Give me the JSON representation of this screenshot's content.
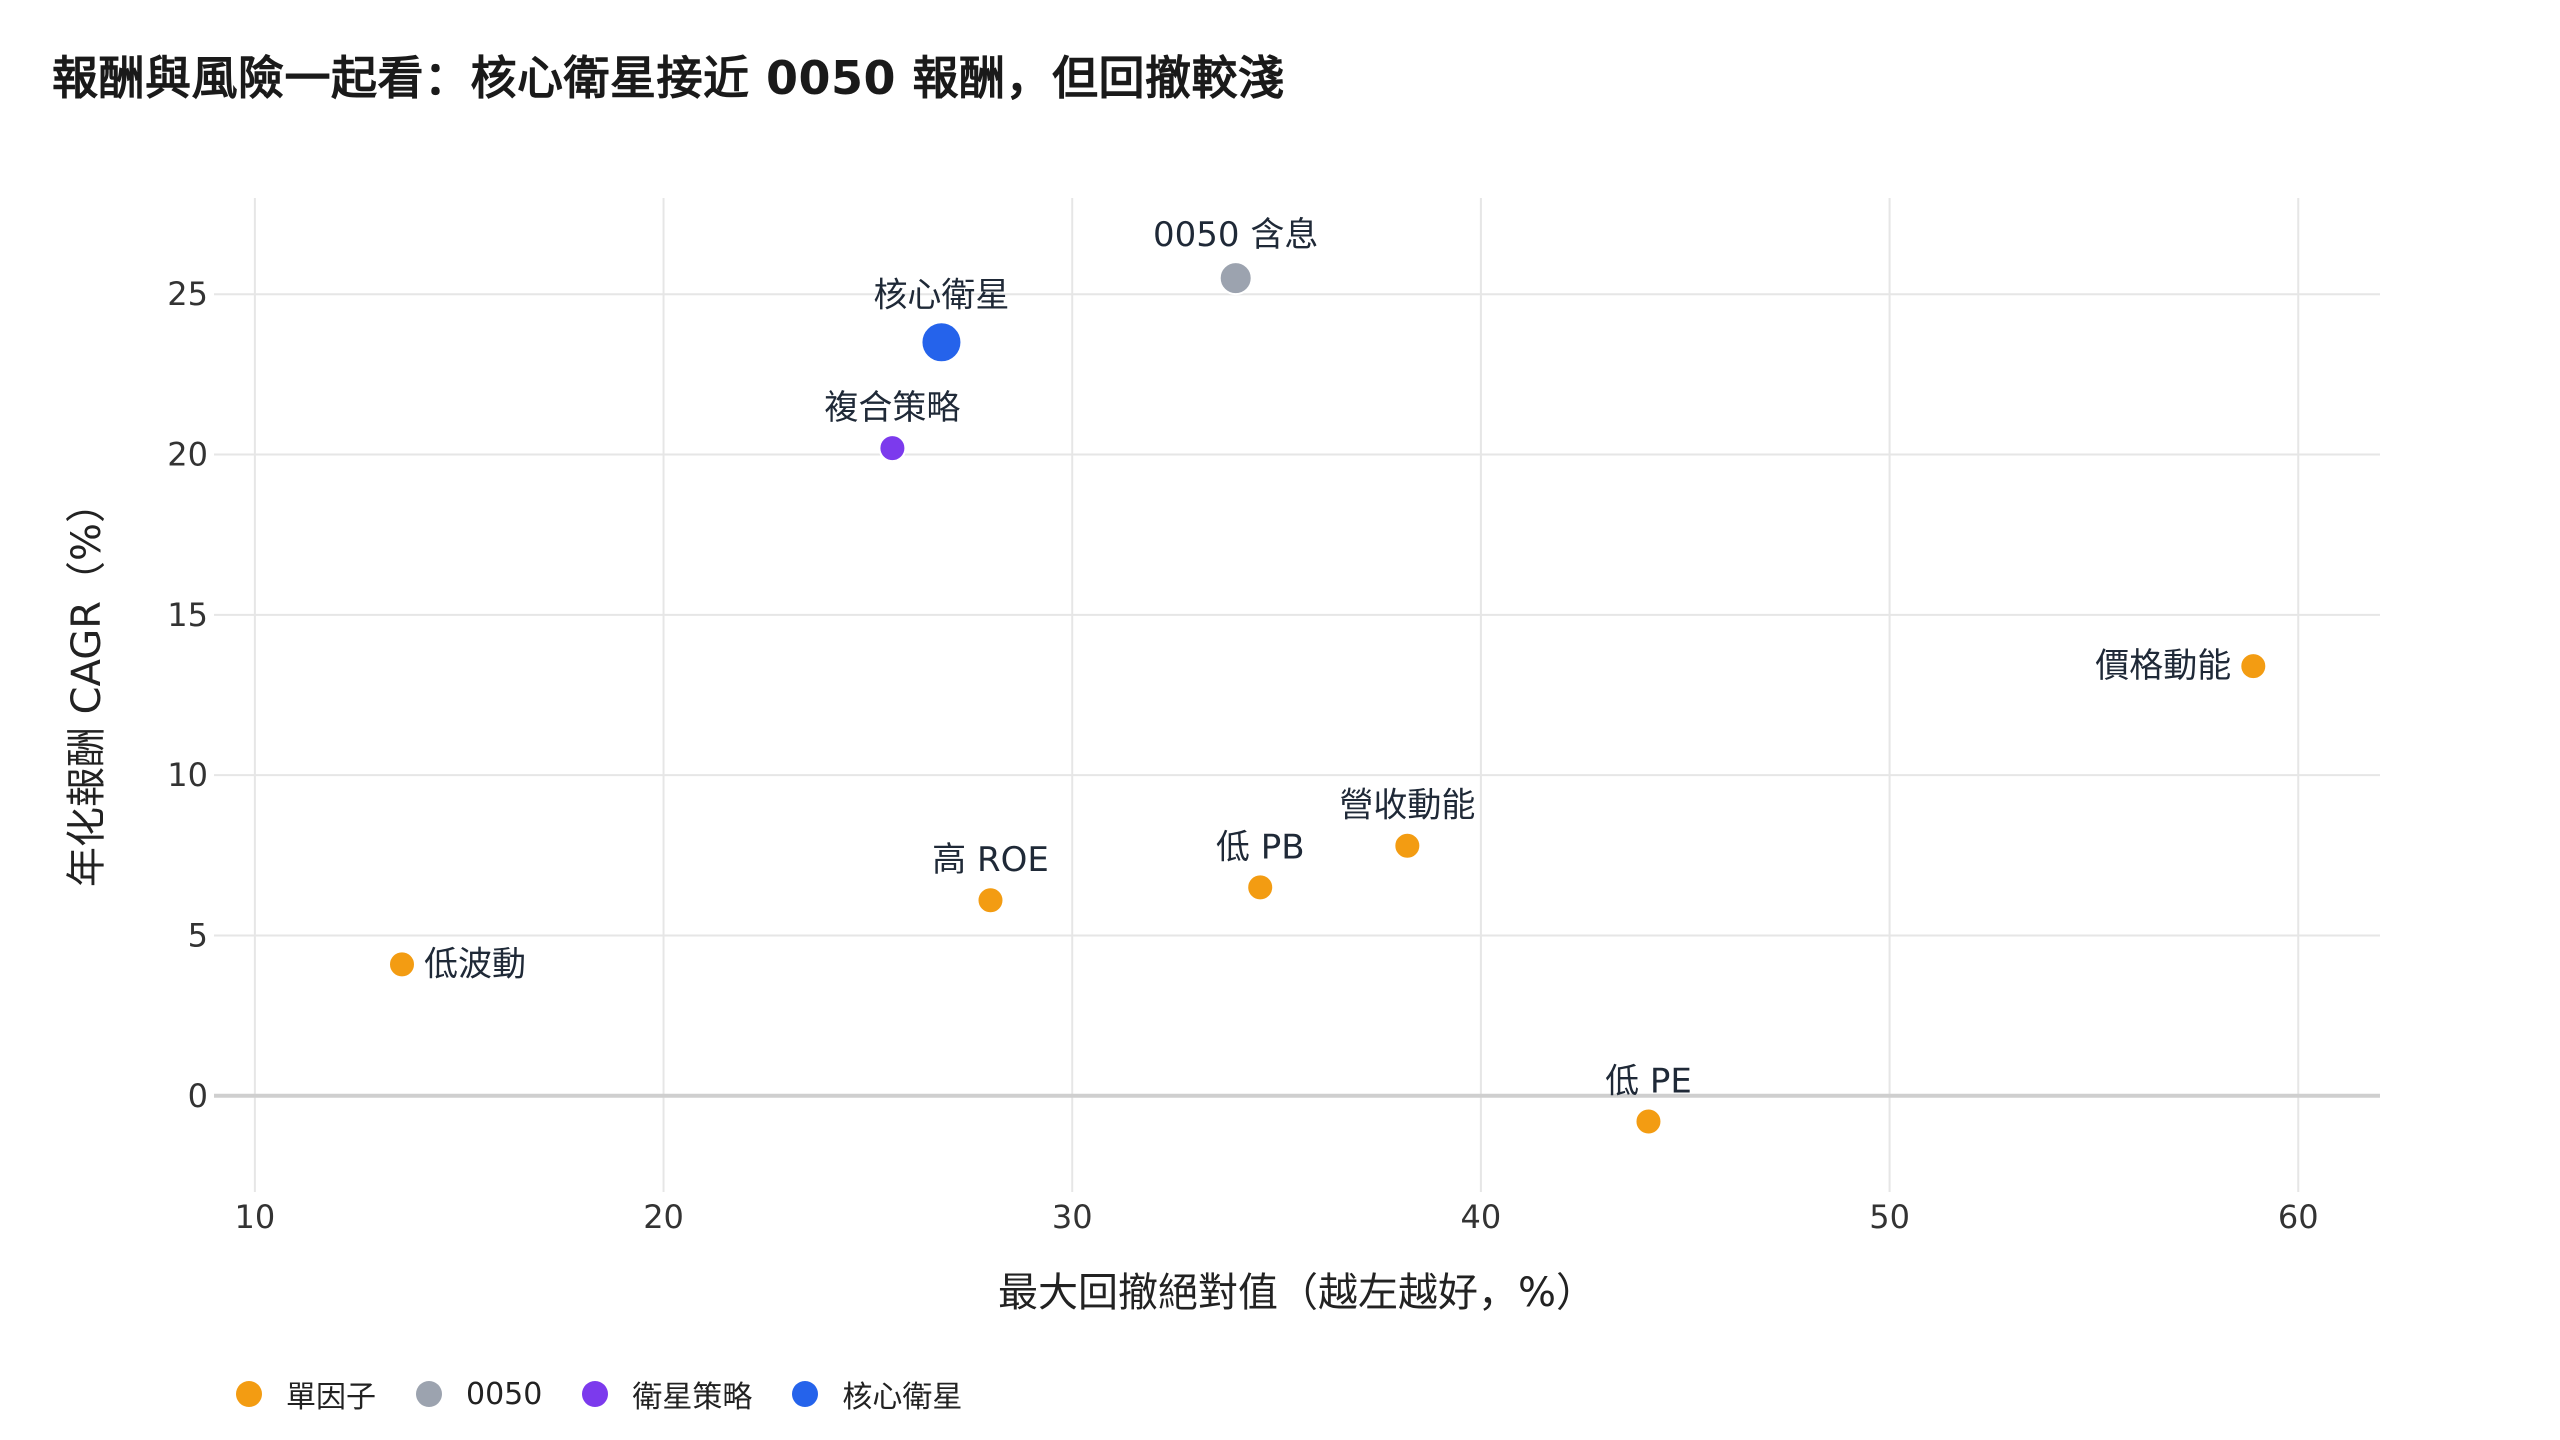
{
  "title": "報酬與風險一起看：核心衛星接近 0050 報酬，但回撤較淺",
  "chart_data": {
    "type": "scatter",
    "title": "報酬與風險一起看：核心衛星接近 0050 報酬，但回撤較淺",
    "xlabel": "最大回撤絕對值（越左越好，%）",
    "ylabel": "年化報酬 CAGR（%）",
    "xlim": [
      9,
      62
    ],
    "ylim": [
      -3,
      28
    ],
    "xticks": [
      10,
      20,
      30,
      40,
      50,
      60
    ],
    "yticks": [
      0,
      5,
      10,
      15,
      20,
      25
    ],
    "grid": true,
    "legend_position": "bottom-left",
    "series": [
      {
        "name": "單因子",
        "color": "#f39c12",
        "points": [
          {
            "label": "低波動",
            "x": 13.6,
            "y": 4.1
          },
          {
            "label": "高 ROE",
            "x": 28.0,
            "y": 6.1
          },
          {
            "label": "低 PB",
            "x": 34.6,
            "y": 6.5
          },
          {
            "label": "營收動能",
            "x": 38.2,
            "y": 7.8
          },
          {
            "label": "低 PE",
            "x": 44.1,
            "y": -0.8
          },
          {
            "label": "價格動能",
            "x": 58.9,
            "y": 13.4
          }
        ]
      },
      {
        "name": "0050",
        "color": "#9ca3af",
        "points": [
          {
            "label": "0050 含息",
            "x": 34.0,
            "y": 25.5
          }
        ]
      },
      {
        "name": "衛星策略",
        "color": "#7c3aed",
        "points": [
          {
            "label": "複合策略",
            "x": 25.6,
            "y": 20.2
          }
        ]
      },
      {
        "name": "核心衛星",
        "color": "#2563eb",
        "points": [
          {
            "label": "核心衛星",
            "x": 26.8,
            "y": 23.5
          }
        ]
      }
    ]
  }
}
